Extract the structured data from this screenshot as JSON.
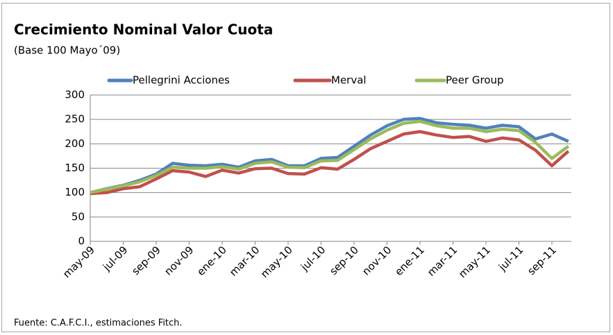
{
  "chart_data": {
    "type": "line",
    "title": "Crecimiento Nominal Valor Cuota",
    "subtitle": "(Base 100 Mayo´09)",
    "source": "Fuente: C.A.F.C.I., estimaciones Fitch.",
    "categories": [
      "may-09",
      null,
      "jul-09",
      null,
      "sep-09",
      null,
      "nov-09",
      null,
      "ene-10",
      null,
      "mar-10",
      null,
      "may-10",
      null,
      "jul-10",
      null,
      "sep-10",
      null,
      "nov-10",
      null,
      "ene-11",
      null,
      "mar-11",
      null,
      "may-11",
      null,
      "jul-11",
      null,
      "sep-11",
      null
    ],
    "series": [
      {
        "name": "Pellegrini Acciones",
        "color": "#4f81bd",
        "values": [
          100,
          108,
          115,
          125,
          138,
          160,
          156,
          155,
          158,
          152,
          165,
          168,
          155,
          155,
          170,
          172,
          195,
          218,
          237,
          250,
          252,
          243,
          240,
          238,
          232,
          238,
          235,
          210,
          220,
          205
        ]
      },
      {
        "name": "Merval",
        "color": "#c0504d",
        "values": [
          98,
          100,
          108,
          112,
          128,
          145,
          142,
          133,
          146,
          140,
          149,
          150,
          139,
          138,
          151,
          148,
          168,
          190,
          205,
          220,
          225,
          218,
          213,
          215,
          205,
          212,
          208,
          187,
          155,
          185
        ]
      },
      {
        "name": "Peer Group",
        "color": "#9bbb59",
        "values": [
          100,
          107,
          114,
          122,
          135,
          152,
          150,
          150,
          153,
          148,
          160,
          163,
          152,
          151,
          165,
          166,
          188,
          210,
          228,
          242,
          246,
          237,
          232,
          232,
          225,
          230,
          227,
          203,
          170,
          195
        ]
      }
    ],
    "ylim": [
      0,
      300
    ],
    "yticks": [
      0,
      50,
      100,
      150,
      200,
      250,
      300
    ],
    "grid": true,
    "legend": "top"
  }
}
